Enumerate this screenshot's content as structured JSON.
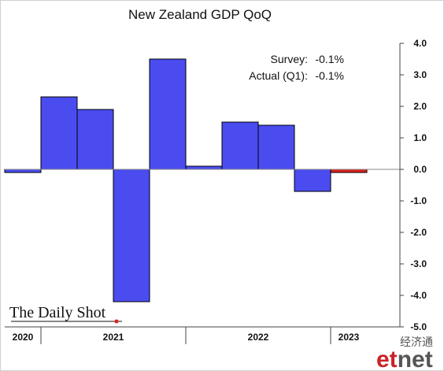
{
  "chart_data": {
    "type": "bar",
    "title": "New Zealand GDP QoQ",
    "xlabel": "",
    "ylabel": "",
    "ylim": [
      -5,
      4
    ],
    "y_ticks": [
      "4.0",
      "3.0",
      "2.0",
      "1.0",
      "0.0",
      "-1.0",
      "-2.0",
      "-3.0",
      "-4.0",
      "-5.0"
    ],
    "y_axis_side": "right",
    "grid": false,
    "categories": [
      "2020 Q4",
      "2021 Q1",
      "2021 Q2",
      "2021 Q3",
      "2021 Q4",
      "2022 Q1",
      "2022 Q2",
      "2022 Q3",
      "2022 Q4",
      "2023 Q1"
    ],
    "values": [
      -0.1,
      2.3,
      1.9,
      -4.2,
      3.5,
      0.1,
      1.5,
      1.4,
      -0.7,
      -0.1
    ],
    "bar_colors": [
      "#4a4cf0",
      "#4a4cf0",
      "#4a4cf0",
      "#4a4cf0",
      "#4a4cf0",
      "#4a4cf0",
      "#4a4cf0",
      "#4a4cf0",
      "#4a4cf0",
      "#e0201c"
    ],
    "year_labels": [
      "2020",
      "2021",
      "2022",
      "2023"
    ],
    "annotations": [
      {
        "label": "Survey:",
        "value": "-0.1%"
      },
      {
        "label": "Actual (Q1):",
        "value": "-0.1%"
      }
    ]
  },
  "branding": {
    "source_logo": "The Daily Shot",
    "watermark_cn": "经济通",
    "watermark_en": "etnet",
    "colors": {
      "bar": "#4a4cf0",
      "highlight": "#e0201c",
      "logo_dot": "#e0201c",
      "watermark_et": "#cc2229",
      "watermark_net": "#555555"
    }
  }
}
